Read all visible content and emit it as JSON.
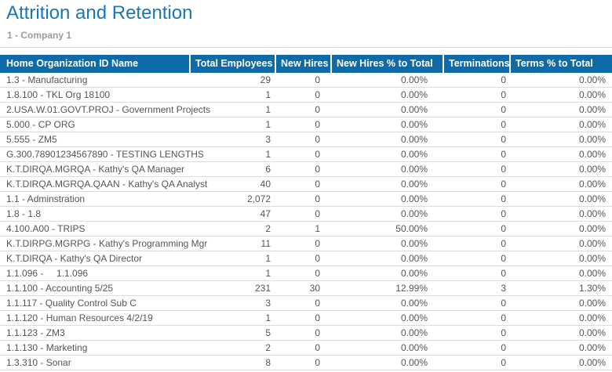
{
  "page": {
    "title": "Attrition and Retention",
    "subtitle": "1 - Company 1"
  },
  "colors": {
    "title": "#1777BD",
    "subtitle": "#9B9B9B",
    "header_bg": "#0E6BA8",
    "header_text": "#FFFFFF",
    "row_text": "#555555",
    "row_border": "#DDDDDD"
  },
  "table": {
    "columns": [
      {
        "key": "org_name",
        "label": "Home Organization ID Name"
      },
      {
        "key": "total_employees",
        "label": "Total Employees"
      },
      {
        "key": "new_hires",
        "label": "New Hires"
      },
      {
        "key": "new_hires_pct",
        "label": "New Hires % to Total"
      },
      {
        "key": "terminations",
        "label": "Terminations"
      },
      {
        "key": "terms_pct",
        "label": "Terms % to Total"
      }
    ],
    "rows": [
      [
        "1.3 - Manufacturing",
        "29",
        "0",
        "0.00%",
        "0",
        "0.00%"
      ],
      [
        "1.8.100 - TKL Org 18100",
        "1",
        "0",
        "0.00%",
        "0",
        "0.00%"
      ],
      [
        "2.USA.W.01.GOVT.PROJ - Government Projects",
        "1",
        "0",
        "0.00%",
        "0",
        "0.00%"
      ],
      [
        "5.000 - CP ORG",
        "1",
        "0",
        "0.00%",
        "0",
        "0.00%"
      ],
      [
        "5.555 - ZM5",
        "3",
        "0",
        "0.00%",
        "0",
        "0.00%"
      ],
      [
        "G.300.78901234567890 - TESTING LENGTHS",
        "1",
        "0",
        "0.00%",
        "0",
        "0.00%"
      ],
      [
        "K.T.DIRQA.MGRQA - Kathy's QA Manager",
        "6",
        "0",
        "0.00%",
        "0",
        "0.00%"
      ],
      [
        "K.T.DIRQA.MGRQA.QAAN - Kathy's QA Analyst",
        "40",
        "0",
        "0.00%",
        "0",
        "0.00%"
      ],
      [
        "1.1 - Adminstration",
        "2,072",
        "0",
        "0.00%",
        "0",
        "0.00%"
      ],
      [
        "1.8 - 1.8",
        "47",
        "0",
        "0.00%",
        "0",
        "0.00%"
      ],
      [
        "4.100.A00 - TRIPS",
        "2",
        "1",
        "50.00%",
        "0",
        "0.00%"
      ],
      [
        "K.T.DIRPG.MGRPG - Kathy's Programming Mgr",
        "11",
        "0",
        "0.00%",
        "0",
        "0.00%"
      ],
      [
        "K.T.DIRQA - Kathy's QA Director",
        "1",
        "0",
        "0.00%",
        "0",
        "0.00%"
      ],
      [
        "1.1.096 -     1.1.096",
        "1",
        "0",
        "0.00%",
        "0",
        "0.00%"
      ],
      [
        "1.1.100 - Accounting 5/25",
        "231",
        "30",
        "12.99%",
        "3",
        "1.30%"
      ],
      [
        "1.1.117 - Quality Control Sub C",
        "3",
        "0",
        "0.00%",
        "0",
        "0.00%"
      ],
      [
        "1.1.120 - Human Resources 4/2/19",
        "1",
        "0",
        "0.00%",
        "0",
        "0.00%"
      ],
      [
        "1.1.123 - ZM3",
        "5",
        "0",
        "0.00%",
        "0",
        "0.00%"
      ],
      [
        "1.1.130 - Marketing",
        "2",
        "0",
        "0.00%",
        "0",
        "0.00%"
      ],
      [
        "1.3.310 - Sonar",
        "8",
        "0",
        "0.00%",
        "0",
        "0.00%"
      ]
    ]
  }
}
